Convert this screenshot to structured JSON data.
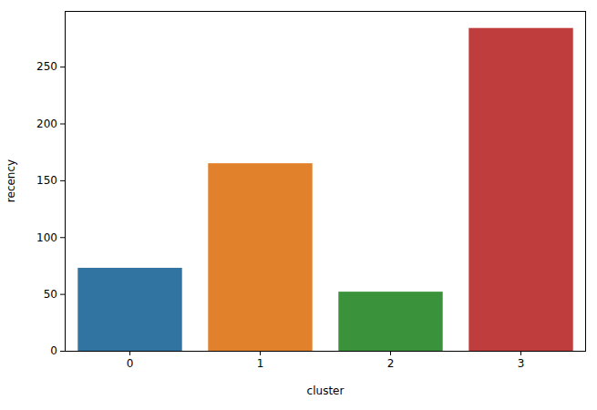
{
  "chart_data": {
    "type": "bar",
    "x_label": "cluster",
    "y_label": "recency",
    "categories": [
      "0",
      "1",
      "2",
      "3"
    ],
    "values": [
      73,
      165,
      52,
      284
    ],
    "colors": [
      "#3274a1",
      "#e1812c",
      "#3a923a",
      "#c03d3e"
    ],
    "ylim": [
      0,
      299
    ],
    "yticks": [
      0,
      50,
      100,
      150,
      200,
      250
    ],
    "grid": false
  }
}
